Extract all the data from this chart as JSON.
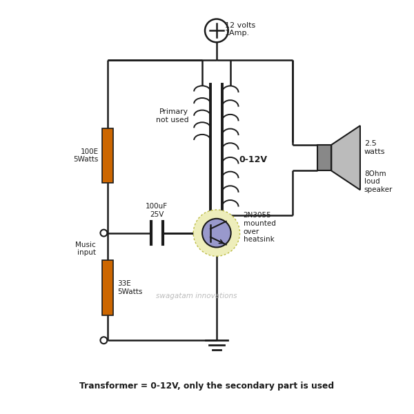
{
  "bg_color": "#ffffff",
  "line_color": "#1a1a1a",
  "resistor_color": "#cc6600",
  "transistor_body": "#9999cc",
  "transistor_bg": "#eeeebb",
  "transistor_bg_edge": "#bbbb44",
  "speaker_body": "#888888",
  "speaker_cone": "#bbbbbb",
  "watermark_color": "#bbbbbb",
  "footer": "Transformer = 0-12V, only the secondary part is used",
  "watermark": "swagatam innovations",
  "lbl_supply": "12 volts\n1Amp.",
  "lbl_r1": "100E\n5Watts",
  "lbl_r2": "33E\n5Watts",
  "lbl_cap": "100uF\n25V",
  "lbl_primary": "Primary\nnot used",
  "lbl_secondary": "0-12V",
  "lbl_transistor": "2N3055\nmounted\nover\nheatsink",
  "lbl_watts": "2.5\nwatts",
  "lbl_speaker": "8Ohm\nloud\nspeaker",
  "lbl_input": "Music\ninput"
}
